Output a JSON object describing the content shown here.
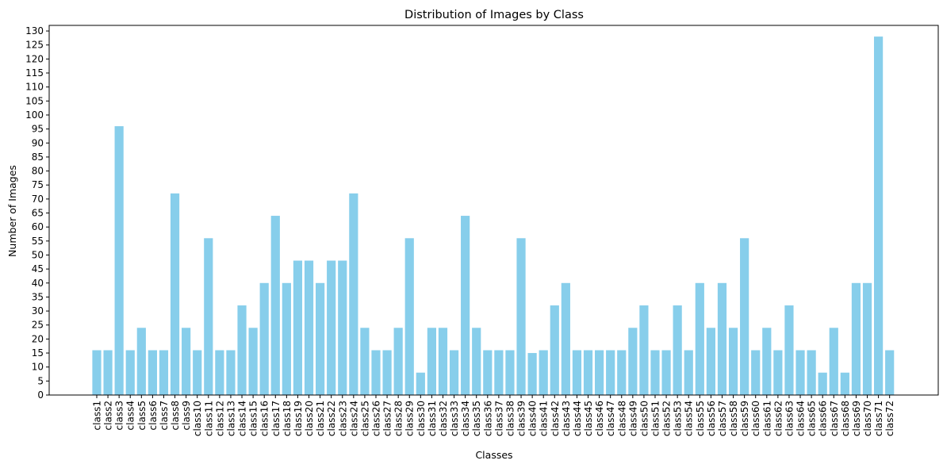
{
  "chart_data": {
    "type": "bar",
    "title": "Distribution of Images by Class",
    "xlabel": "Classes",
    "ylabel": "Number of Images",
    "ylim": [
      0,
      132
    ],
    "yticks": [
      0,
      5,
      10,
      15,
      20,
      25,
      30,
      35,
      40,
      45,
      50,
      55,
      60,
      65,
      70,
      75,
      80,
      85,
      90,
      95,
      100,
      105,
      110,
      115,
      120,
      125,
      130
    ],
    "grid": false,
    "bar_color": "#87ceeb",
    "categories": [
      "class1",
      "class2",
      "class3",
      "class4",
      "class5",
      "class6",
      "class7",
      "class8",
      "class9",
      "class10",
      "class11",
      "class12",
      "class13",
      "class14",
      "class15",
      "class16",
      "class17",
      "class18",
      "class19",
      "class20",
      "class21",
      "class22",
      "class23",
      "class24",
      "class25",
      "class26",
      "class27",
      "class28",
      "class29",
      "class30",
      "class31",
      "class32",
      "class33",
      "class34",
      "class35",
      "class36",
      "class37",
      "class38",
      "class39",
      "class40",
      "class41",
      "class42",
      "class43",
      "class44",
      "class45",
      "class46",
      "class47",
      "class48",
      "class49",
      "class50",
      "class51",
      "class52",
      "class53",
      "class54",
      "class55",
      "class56",
      "class57",
      "class58",
      "class59",
      "class60",
      "class61",
      "class62",
      "class63",
      "class64",
      "class65",
      "class66",
      "class67",
      "class68",
      "class69",
      "class70",
      "class71",
      "class72"
    ],
    "values": [
      16,
      16,
      96,
      16,
      24,
      16,
      16,
      72,
      24,
      16,
      56,
      16,
      16,
      32,
      24,
      40,
      64,
      40,
      48,
      48,
      40,
      48,
      48,
      72,
      24,
      16,
      16,
      24,
      56,
      8,
      24,
      24,
      16,
      64,
      24,
      16,
      16,
      16,
      56,
      15,
      16,
      32,
      40,
      16,
      16,
      16,
      16,
      16,
      24,
      32,
      16,
      16,
      32,
      16,
      40,
      24,
      40,
      24,
      56,
      16,
      24,
      16,
      32,
      16,
      16,
      8,
      24,
      8,
      40,
      40,
      128,
      16
    ]
  }
}
